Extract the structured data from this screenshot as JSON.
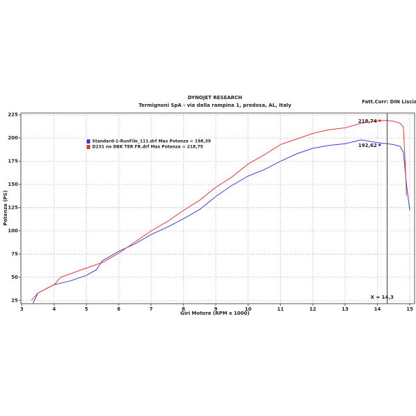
{
  "chart_data": {
    "type": "line",
    "title": "DYNOJET RESEARCH",
    "subtitle": "Termignoni SpA  - via della rampina 1, predosa, AL,  Italy",
    "corner_text": "Fatt.Corr: DIN  Lisciatura",
    "x_label": "Giri Motore (RPM x 1000)",
    "y_label": "Potenza (PS)",
    "xlim": [
      2.97,
      15.15
    ],
    "ylim": [
      21.5,
      227
    ],
    "xticks": [
      3,
      4,
      5,
      6,
      7,
      8,
      9,
      10,
      11,
      12,
      13,
      14,
      15
    ],
    "yticks": [
      25,
      50,
      75,
      100,
      125,
      150,
      175,
      200,
      225
    ],
    "grid": true,
    "legend": [
      "Standard-1-RunFile_111.drf Max Potenza = 198,39",
      "D231 no DBK TER FR.drf Max Potenza = 218,75"
    ],
    "series": [
      {
        "name": "Standard-1-RunFile_111.drf",
        "color": "#3c3cdc",
        "x": [
          3.35,
          3.5,
          4,
          4.5,
          5,
          5.3,
          5.5,
          6,
          6.5,
          7,
          7.5,
          8,
          8.5,
          9,
          9.5,
          10,
          10.5,
          11,
          11.5,
          12,
          12.5,
          13,
          13.5,
          14,
          14.3,
          14.5,
          14.7,
          14.8,
          14.9,
          15
        ],
        "values": [
          22,
          33,
          42,
          46,
          52,
          58,
          68,
          78,
          86,
          96,
          104,
          113,
          123,
          137,
          149,
          159,
          166,
          175,
          183,
          189,
          192,
          194,
          198,
          195,
          194,
          193,
          191,
          185,
          150,
          122
        ]
      },
      {
        "name": "D231 no DBK TER FR.drf",
        "color": "#e83535",
        "x": [
          3.3,
          3.5,
          4,
          4.2,
          5,
          5.5,
          6,
          6.5,
          7,
          7.5,
          8,
          8.5,
          9,
          9.5,
          10,
          10.5,
          11,
          11.5,
          12,
          12.5,
          13,
          13.5,
          14,
          14.3,
          14.5,
          14.7,
          14.8,
          14.85,
          14.9
        ],
        "values": [
          25,
          33,
          42,
          50,
          60,
          66,
          76,
          88,
          100,
          110,
          122,
          133,
          147,
          158,
          172,
          182,
          193,
          199,
          205,
          209,
          211,
          216,
          218.7,
          219,
          218,
          216,
          212,
          180,
          138
        ]
      }
    ],
    "markers": [
      {
        "x": 14.07,
        "value": 218.74,
        "label": "218,74",
        "series": 1
      },
      {
        "x": 14.07,
        "value": 192.62,
        "label": "192,62",
        "series": 0
      }
    ],
    "cursor": {
      "value": 14.3,
      "label": "X = 14,3"
    }
  }
}
